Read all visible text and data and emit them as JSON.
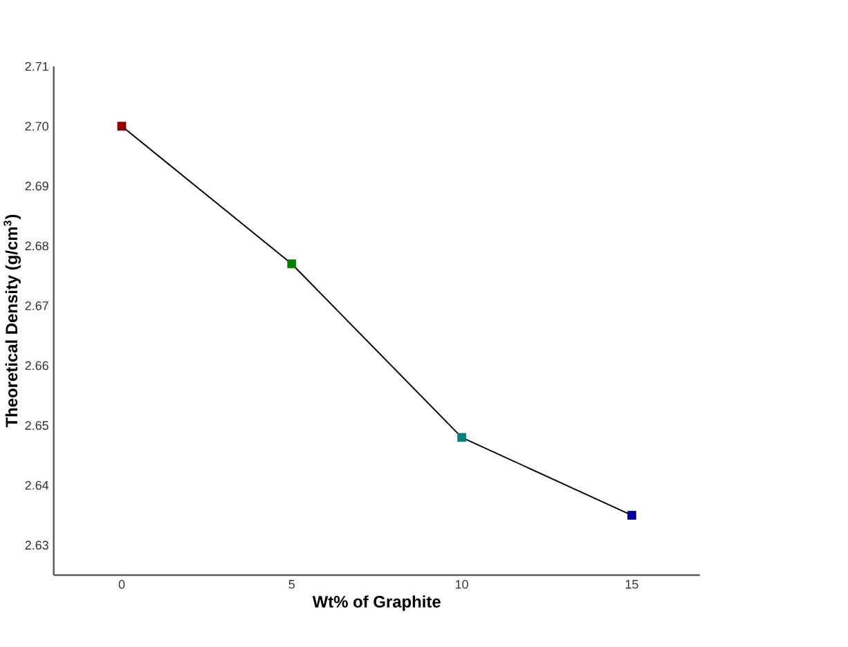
{
  "chart_data": {
    "type": "line",
    "xlabel": "Wt% of Graphite",
    "ylabel": "Theoretical Density (g/cm$^{3}$)",
    "x": [
      0,
      5,
      10,
      15
    ],
    "series": [
      {
        "color": "#000000",
        "colors": [
          "#8b0000",
          "#008000",
          "#008080",
          "#0000a0"
        ],
        "values": [
          2.7,
          2.677,
          2.648,
          2.635
        ]
      }
    ],
    "xlim": [
      -2,
      17
    ],
    "ylim": [
      2.625,
      2.71
    ],
    "xticks": [
      0,
      5,
      10,
      15
    ],
    "yticks": [
      {
        "value": 2.63,
        "label": "2.63"
      },
      {
        "value": 2.64,
        "label": "2.64"
      },
      {
        "value": 2.65,
        "label": "2.65"
      },
      {
        "value": 2.66,
        "label": "2.66"
      },
      {
        "value": 2.67,
        "label": "2.67"
      },
      {
        "value": 2.68,
        "label": "2.68"
      },
      {
        "value": 2.69,
        "label": "2.69"
      },
      {
        "value": 2.7,
        "label": "2.70"
      },
      {
        "value": 2.71,
        "label": "2.71"
      }
    ],
    "marker": "square",
    "grid": false
  }
}
